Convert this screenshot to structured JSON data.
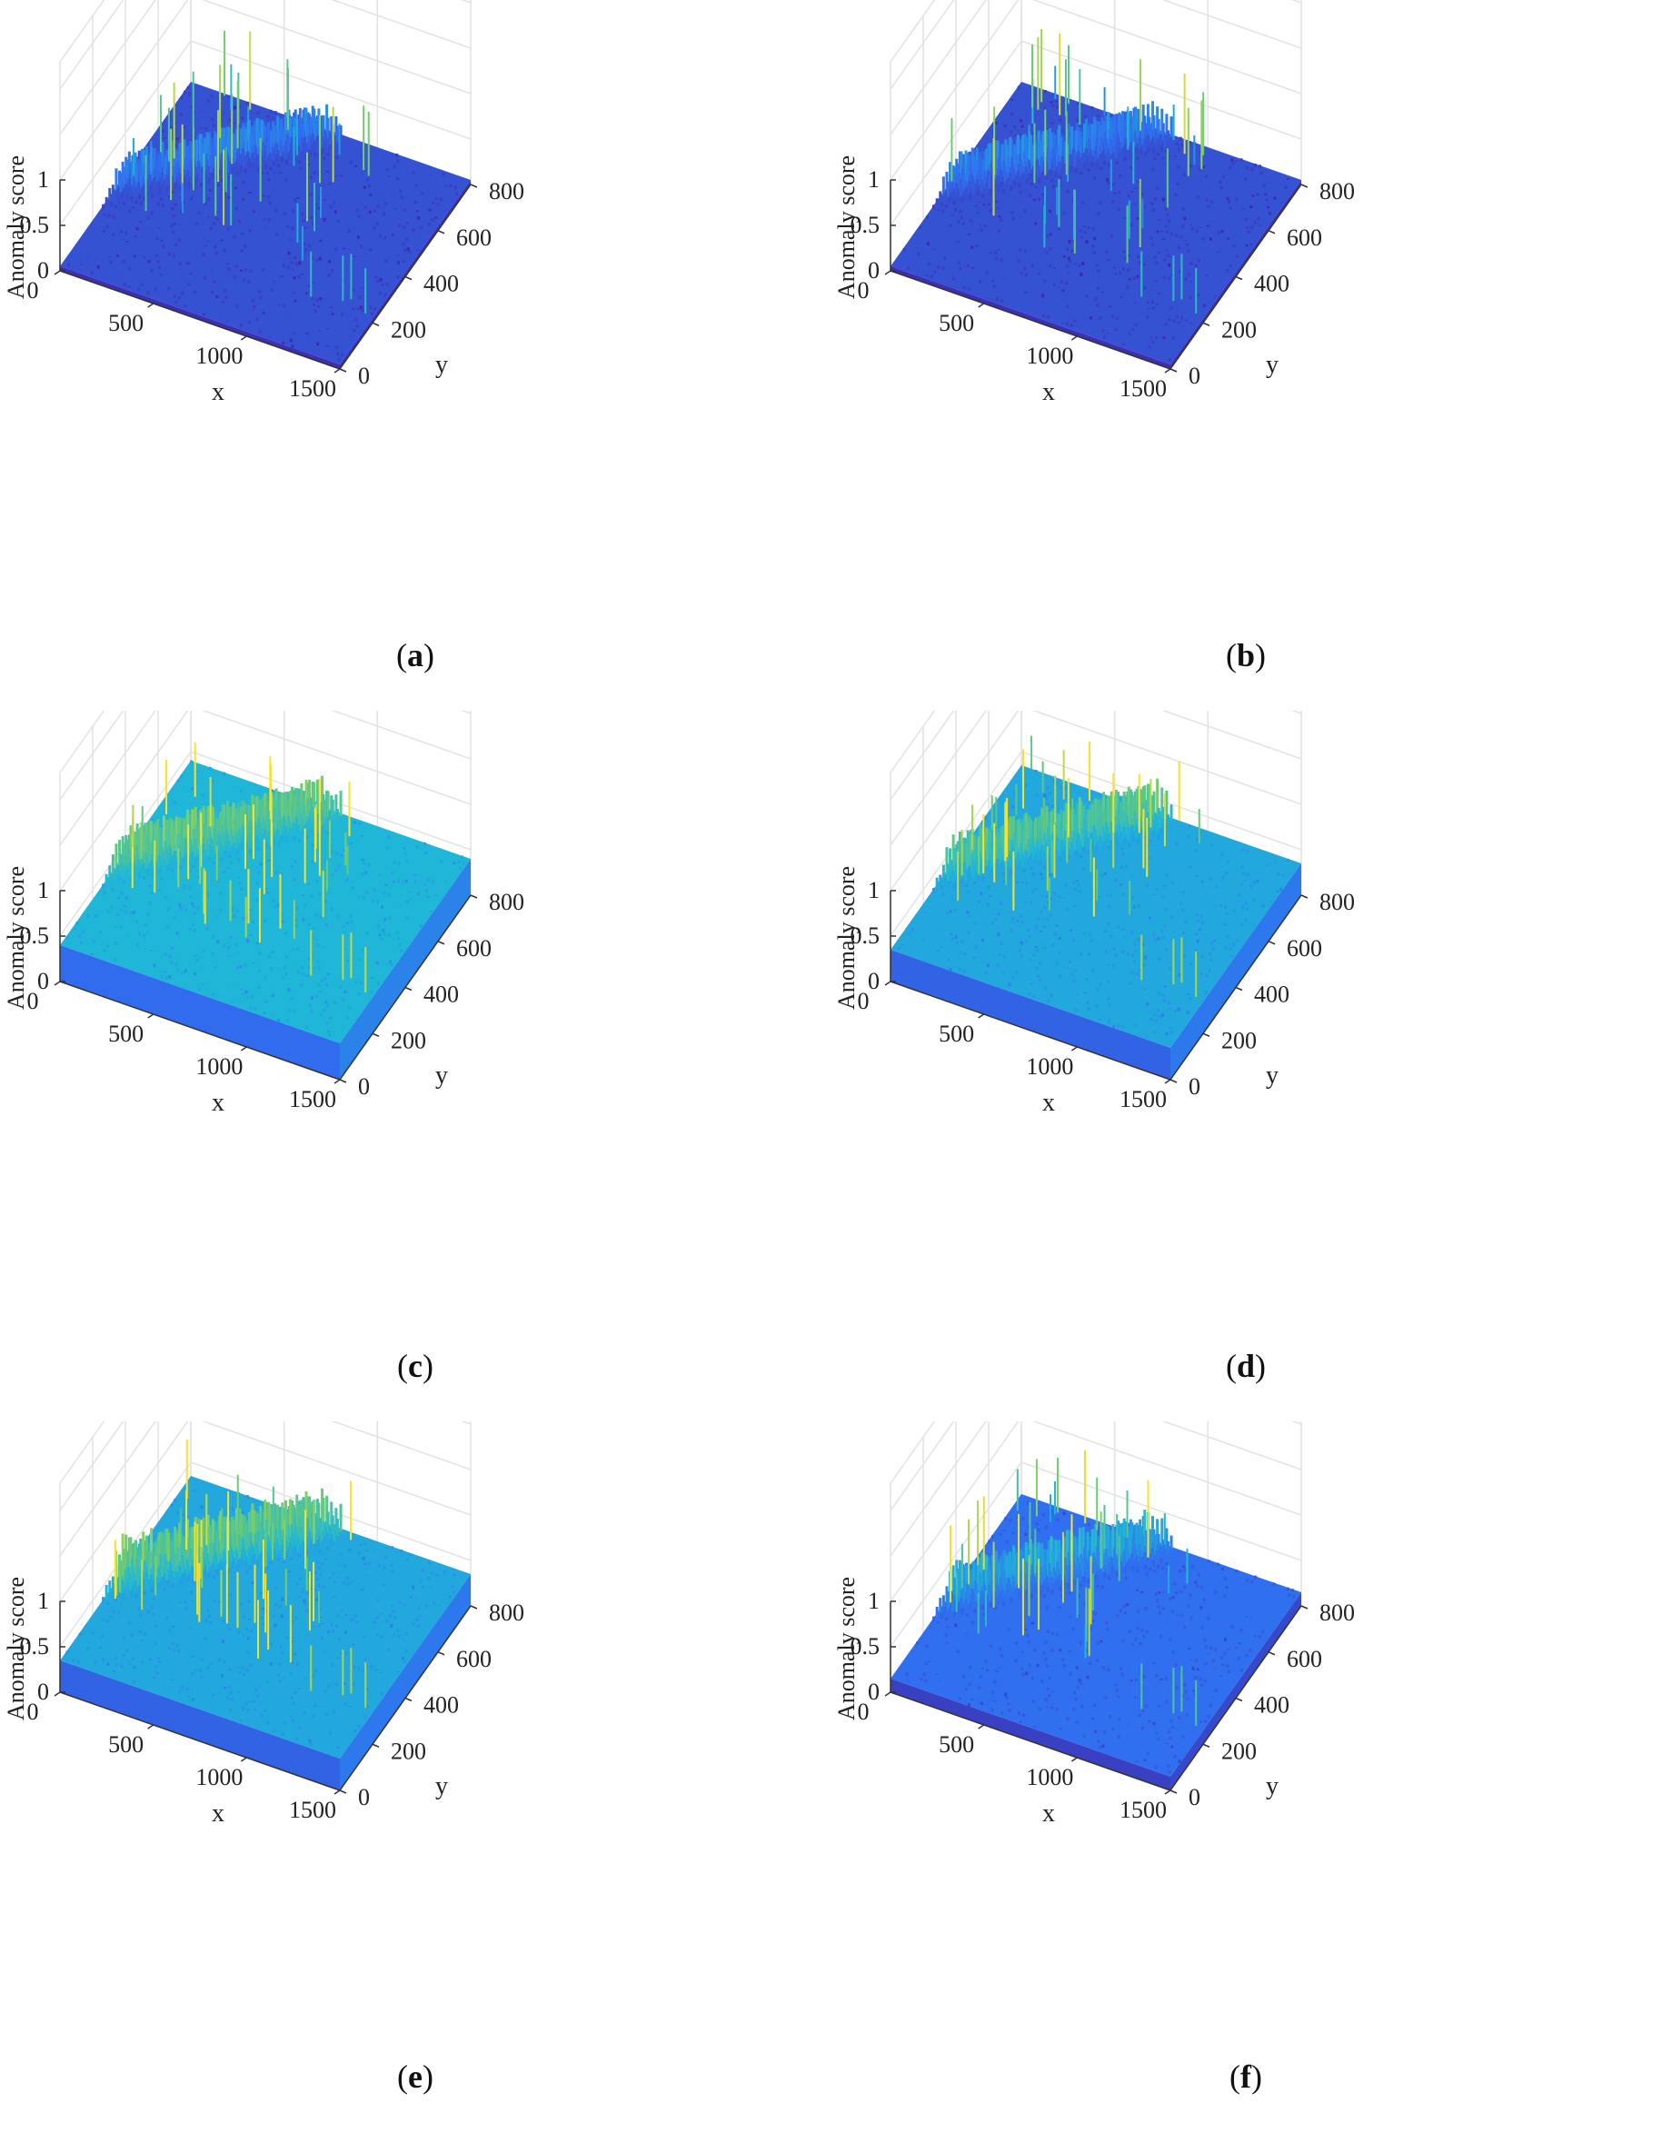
{
  "chart_data": [
    {
      "type": "surface",
      "panel_label": "a",
      "xlabel": "x",
      "ylabel": "y",
      "zlabel": "Anomaly score",
      "xlim": [
        0,
        1500
      ],
      "ylim": [
        0,
        800
      ],
      "zlim": [
        0,
        1
      ],
      "x_ticks": [
        "0",
        "500",
        "1000",
        "1500"
      ],
      "y_ticks": [
        "0",
        "200",
        "400",
        "600",
        "800"
      ],
      "z_ticks": [
        "0",
        "0.5",
        "1"
      ],
      "colormap": "parula",
      "baseline_score": 0.05,
      "diagonal_band_score": 0.35,
      "max_spike_score": 1.0,
      "grid": true
    },
    {
      "type": "surface",
      "panel_label": "b",
      "xlabel": "x",
      "ylabel": "y",
      "zlabel": "Anomaly score",
      "xlim": [
        0,
        1500
      ],
      "ylim": [
        0,
        800
      ],
      "zlim": [
        0,
        1
      ],
      "x_ticks": [
        "0",
        "500",
        "1000",
        "1500"
      ],
      "y_ticks": [
        "0",
        "200",
        "400",
        "600",
        "800"
      ],
      "z_ticks": [
        "0",
        "0.5",
        "1"
      ],
      "colormap": "parula",
      "baseline_score": 0.05,
      "diagonal_band_score": 0.35,
      "max_spike_score": 1.0,
      "grid": true
    },
    {
      "type": "surface",
      "panel_label": "c",
      "xlabel": "x",
      "ylabel": "y",
      "zlabel": "Anomaly score",
      "xlim": [
        0,
        1500
      ],
      "ylim": [
        0,
        800
      ],
      "zlim": [
        0,
        1
      ],
      "x_ticks": [
        "0",
        "500",
        "1000",
        "1500"
      ],
      "y_ticks": [
        "0",
        "200",
        "400",
        "600",
        "800"
      ],
      "z_ticks": [
        "0",
        "0.5",
        "1"
      ],
      "colormap": "parula",
      "baseline_score": 0.4,
      "diagonal_band_score": 0.75,
      "max_spike_score": 1.0,
      "grid": true
    },
    {
      "type": "surface",
      "panel_label": "d",
      "xlabel": "x",
      "ylabel": "y",
      "zlabel": "Anomaly score",
      "xlim": [
        0,
        1500
      ],
      "ylim": [
        0,
        800
      ],
      "zlim": [
        0,
        1
      ],
      "x_ticks": [
        "0",
        "500",
        "1000",
        "1500"
      ],
      "y_ticks": [
        "0",
        "200",
        "400",
        "600",
        "800"
      ],
      "z_ticks": [
        "0",
        "0.5",
        "1"
      ],
      "colormap": "parula",
      "baseline_score": 0.35,
      "diagonal_band_score": 0.7,
      "max_spike_score": 1.0,
      "grid": true
    },
    {
      "type": "surface",
      "panel_label": "e",
      "xlabel": "x",
      "ylabel": "y",
      "zlabel": "Anomaly score",
      "xlim": [
        0,
        1500
      ],
      "ylim": [
        0,
        800
      ],
      "zlim": [
        0,
        1
      ],
      "x_ticks": [
        "0",
        "500",
        "1000",
        "1500"
      ],
      "y_ticks": [
        "0",
        "200",
        "400",
        "600",
        "800"
      ],
      "z_ticks": [
        "0",
        "0.5",
        "1"
      ],
      "colormap": "parula",
      "baseline_score": 0.35,
      "diagonal_band_score": 0.75,
      "max_spike_score": 1.0,
      "grid": true
    },
    {
      "type": "surface",
      "panel_label": "f",
      "xlabel": "x",
      "ylabel": "y",
      "zlabel": "Anomaly score",
      "xlim": [
        0,
        1500
      ],
      "ylim": [
        0,
        800
      ],
      "zlim": [
        0,
        1
      ],
      "x_ticks": [
        "0",
        "500",
        "1000",
        "1500"
      ],
      "y_ticks": [
        "0",
        "200",
        "400",
        "600",
        "800"
      ],
      "z_ticks": [
        "0",
        "0.5",
        "1"
      ],
      "colormap": "parula",
      "baseline_score": 0.15,
      "diagonal_band_score": 0.5,
      "max_spike_score": 1.0,
      "grid": true
    }
  ],
  "colors": {
    "low": "#3e26a8",
    "mid_low": "#2f6ff0",
    "mid": "#1fb6d8",
    "mid_high": "#6fcc70",
    "high": "#f5e32c",
    "grid": "#e2e2e2",
    "axis": "#333333"
  }
}
